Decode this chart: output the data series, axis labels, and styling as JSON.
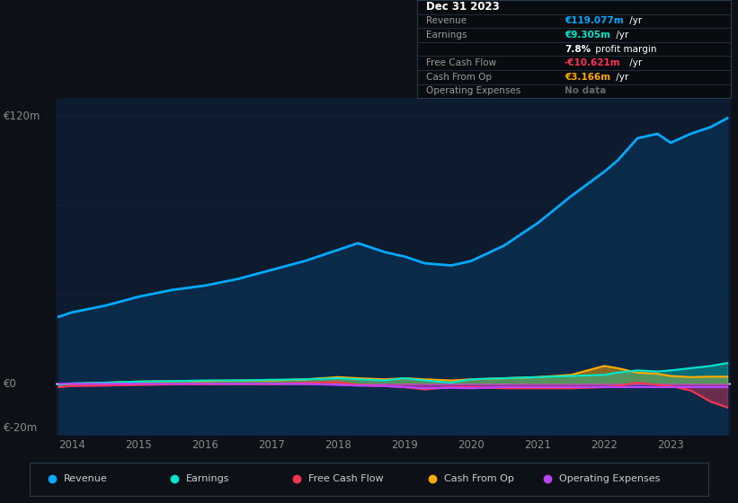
{
  "background_color": "#0d1117",
  "plot_bg_color": "#0d1b2e",
  "grid_color": "#1a2535",
  "years": [
    2013.8,
    2014.0,
    2014.5,
    2015.0,
    2015.5,
    2016.0,
    2016.5,
    2017.0,
    2017.5,
    2018.0,
    2018.3,
    2018.7,
    2019.0,
    2019.3,
    2019.7,
    2020.0,
    2020.5,
    2021.0,
    2021.5,
    2022.0,
    2022.2,
    2022.5,
    2022.8,
    2023.0,
    2023.3,
    2023.6,
    2023.85
  ],
  "revenue": [
    30,
    32,
    35,
    39,
    42,
    44,
    47,
    51,
    55,
    60,
    63,
    59,
    57,
    54,
    53,
    55,
    62,
    72,
    84,
    95,
    100,
    110,
    112,
    108,
    112,
    115,
    119
  ],
  "earnings": [
    -0.5,
    0.2,
    0.5,
    1.0,
    1.2,
    1.5,
    1.5,
    1.8,
    2.0,
    2.5,
    2.0,
    1.5,
    2.5,
    1.5,
    0.5,
    2.0,
    2.5,
    3.0,
    3.5,
    4.0,
    5.0,
    6.0,
    5.5,
    6.0,
    7.0,
    8.0,
    9.3
  ],
  "free_cash_flow": [
    -1.5,
    -1.0,
    -0.8,
    -0.5,
    -0.3,
    -0.2,
    0.0,
    -0.1,
    0.5,
    0.8,
    -0.5,
    -1.0,
    -1.5,
    -2.5,
    -1.5,
    -1.5,
    -2.0,
    -2.0,
    -2.0,
    -1.5,
    -1.0,
    0.5,
    -0.5,
    -1.0,
    -3.0,
    -8.0,
    -10.6
  ],
  "cash_from_op": [
    -0.5,
    0.0,
    0.5,
    1.0,
    1.2,
    1.2,
    1.5,
    1.5,
    2.0,
    3.0,
    2.5,
    2.0,
    2.5,
    2.0,
    1.5,
    2.0,
    2.5,
    3.0,
    4.0,
    8.0,
    7.0,
    5.0,
    4.5,
    3.5,
    3.0,
    3.2,
    3.2
  ],
  "operating_expenses": [
    0.0,
    0.0,
    0.0,
    0.0,
    0.0,
    0.0,
    0.0,
    0.0,
    0.0,
    -0.5,
    -0.8,
    -1.0,
    -1.5,
    -2.0,
    -1.8,
    -2.0,
    -1.5,
    -1.5,
    -1.5,
    -1.5,
    -1.5,
    -1.5,
    -1.5,
    -1.5,
    -1.5,
    -1.5,
    -1.5
  ],
  "revenue_color": "#00aaff",
  "revenue_fill": "#0a2a4a",
  "earnings_color": "#00e5cc",
  "free_cash_flow_color": "#ff3355",
  "cash_from_op_color": "#ffaa00",
  "op_exp_color": "#bb44ff",
  "ylim_min": -23,
  "ylim_max": 128,
  "xticks": [
    2014,
    2015,
    2016,
    2017,
    2018,
    2019,
    2020,
    2021,
    2022,
    2023
  ],
  "legend_labels": [
    "Revenue",
    "Earnings",
    "Free Cash Flow",
    "Cash From Op",
    "Operating Expenses"
  ],
  "legend_colors": [
    "#00aaff",
    "#00e5cc",
    "#ff3355",
    "#ffaa00",
    "#bb44ff"
  ]
}
